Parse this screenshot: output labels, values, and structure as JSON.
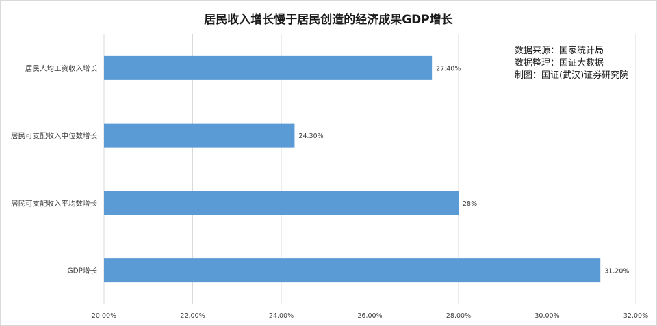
{
  "title": "居民收入增长慢于居民创造的经济成果GDP增长",
  "source_notes": [
    "数据来源：国家统计局",
    "数据整理：国证大数据",
    "制图：国证(武汉)证券研究院"
  ],
  "colors": {
    "bar": "#5b9bd5",
    "grid": "#d9d9d9",
    "text": "#404040"
  },
  "chart_data": {
    "type": "bar",
    "orientation": "horizontal",
    "categories": [
      "居民人均工资收入增长",
      "居民可支配收入中位数增长",
      "居民可支配收入平均数增长",
      "GDP增长"
    ],
    "values": [
      27.4,
      24.3,
      28,
      31.2
    ],
    "value_labels": [
      "27.40%",
      "24.30%",
      "28%",
      "31.20%"
    ],
    "xlim": [
      20,
      32
    ],
    "xticks": [
      "20.00%",
      "22.00%",
      "24.00%",
      "26.00%",
      "28.00%",
      "30.00%",
      "32.00%"
    ],
    "xtick_values": [
      20,
      22,
      24,
      26,
      28,
      30,
      32
    ],
    "grid": "vertical",
    "xlabel": "",
    "ylabel": ""
  }
}
